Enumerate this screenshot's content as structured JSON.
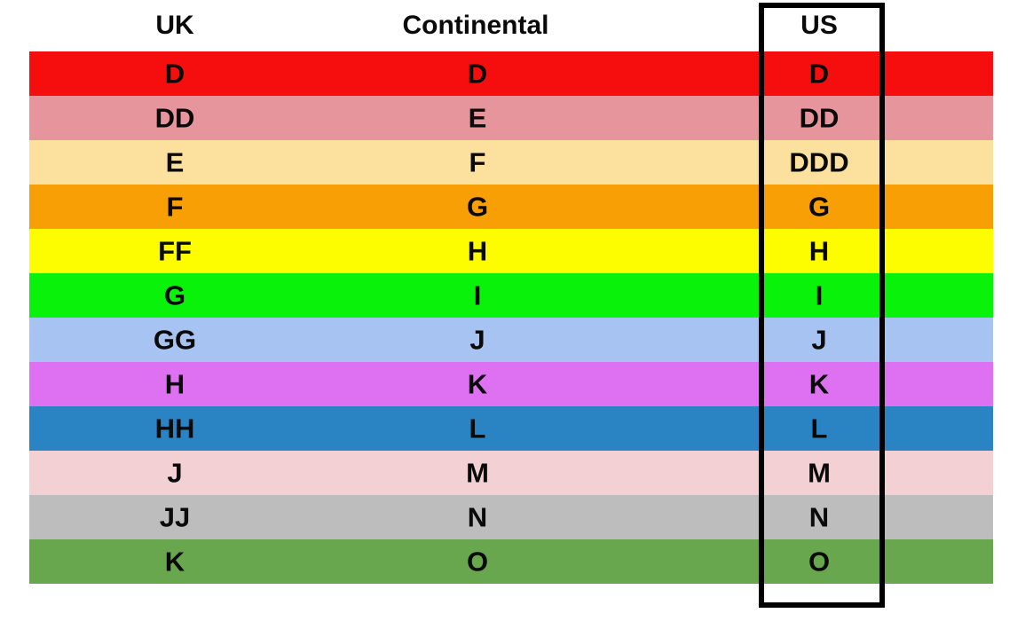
{
  "chart_data": {
    "type": "table",
    "columns": [
      "UK",
      "Continental",
      "US"
    ],
    "highlighted_column": "US",
    "highlight_box_color": "#000000",
    "background_color": "#ffffff",
    "rows": [
      {
        "uk": "D",
        "continental": "D",
        "us": "D",
        "color": "#f60d0d"
      },
      {
        "uk": "DD",
        "continental": "E",
        "us": "DD",
        "color": "#e6959c"
      },
      {
        "uk": "E",
        "continental": "F",
        "us": "DDD",
        "color": "#fce09d"
      },
      {
        "uk": "F",
        "continental": "G",
        "us": "G",
        "color": "#f99f06"
      },
      {
        "uk": "FF",
        "continental": "H",
        "us": "H",
        "color": "#fdfd00"
      },
      {
        "uk": "G",
        "continental": "I",
        "us": "I",
        "color": "#09f209"
      },
      {
        "uk": "GG",
        "continental": "J",
        "us": "J",
        "color": "#a6c3f2"
      },
      {
        "uk": "H",
        "continental": "K",
        "us": "K",
        "color": "#de71f2"
      },
      {
        "uk": "HH",
        "continental": "L",
        "us": "L",
        "color": "#2a84c4"
      },
      {
        "uk": "J",
        "continental": "M",
        "us": "M",
        "color": "#f2d0d3"
      },
      {
        "uk": "JJ",
        "continental": "N",
        "us": "N",
        "color": "#bdbdbd"
      },
      {
        "uk": "K",
        "continental": "O",
        "us": "O",
        "color": "#69a74f"
      }
    ]
  }
}
